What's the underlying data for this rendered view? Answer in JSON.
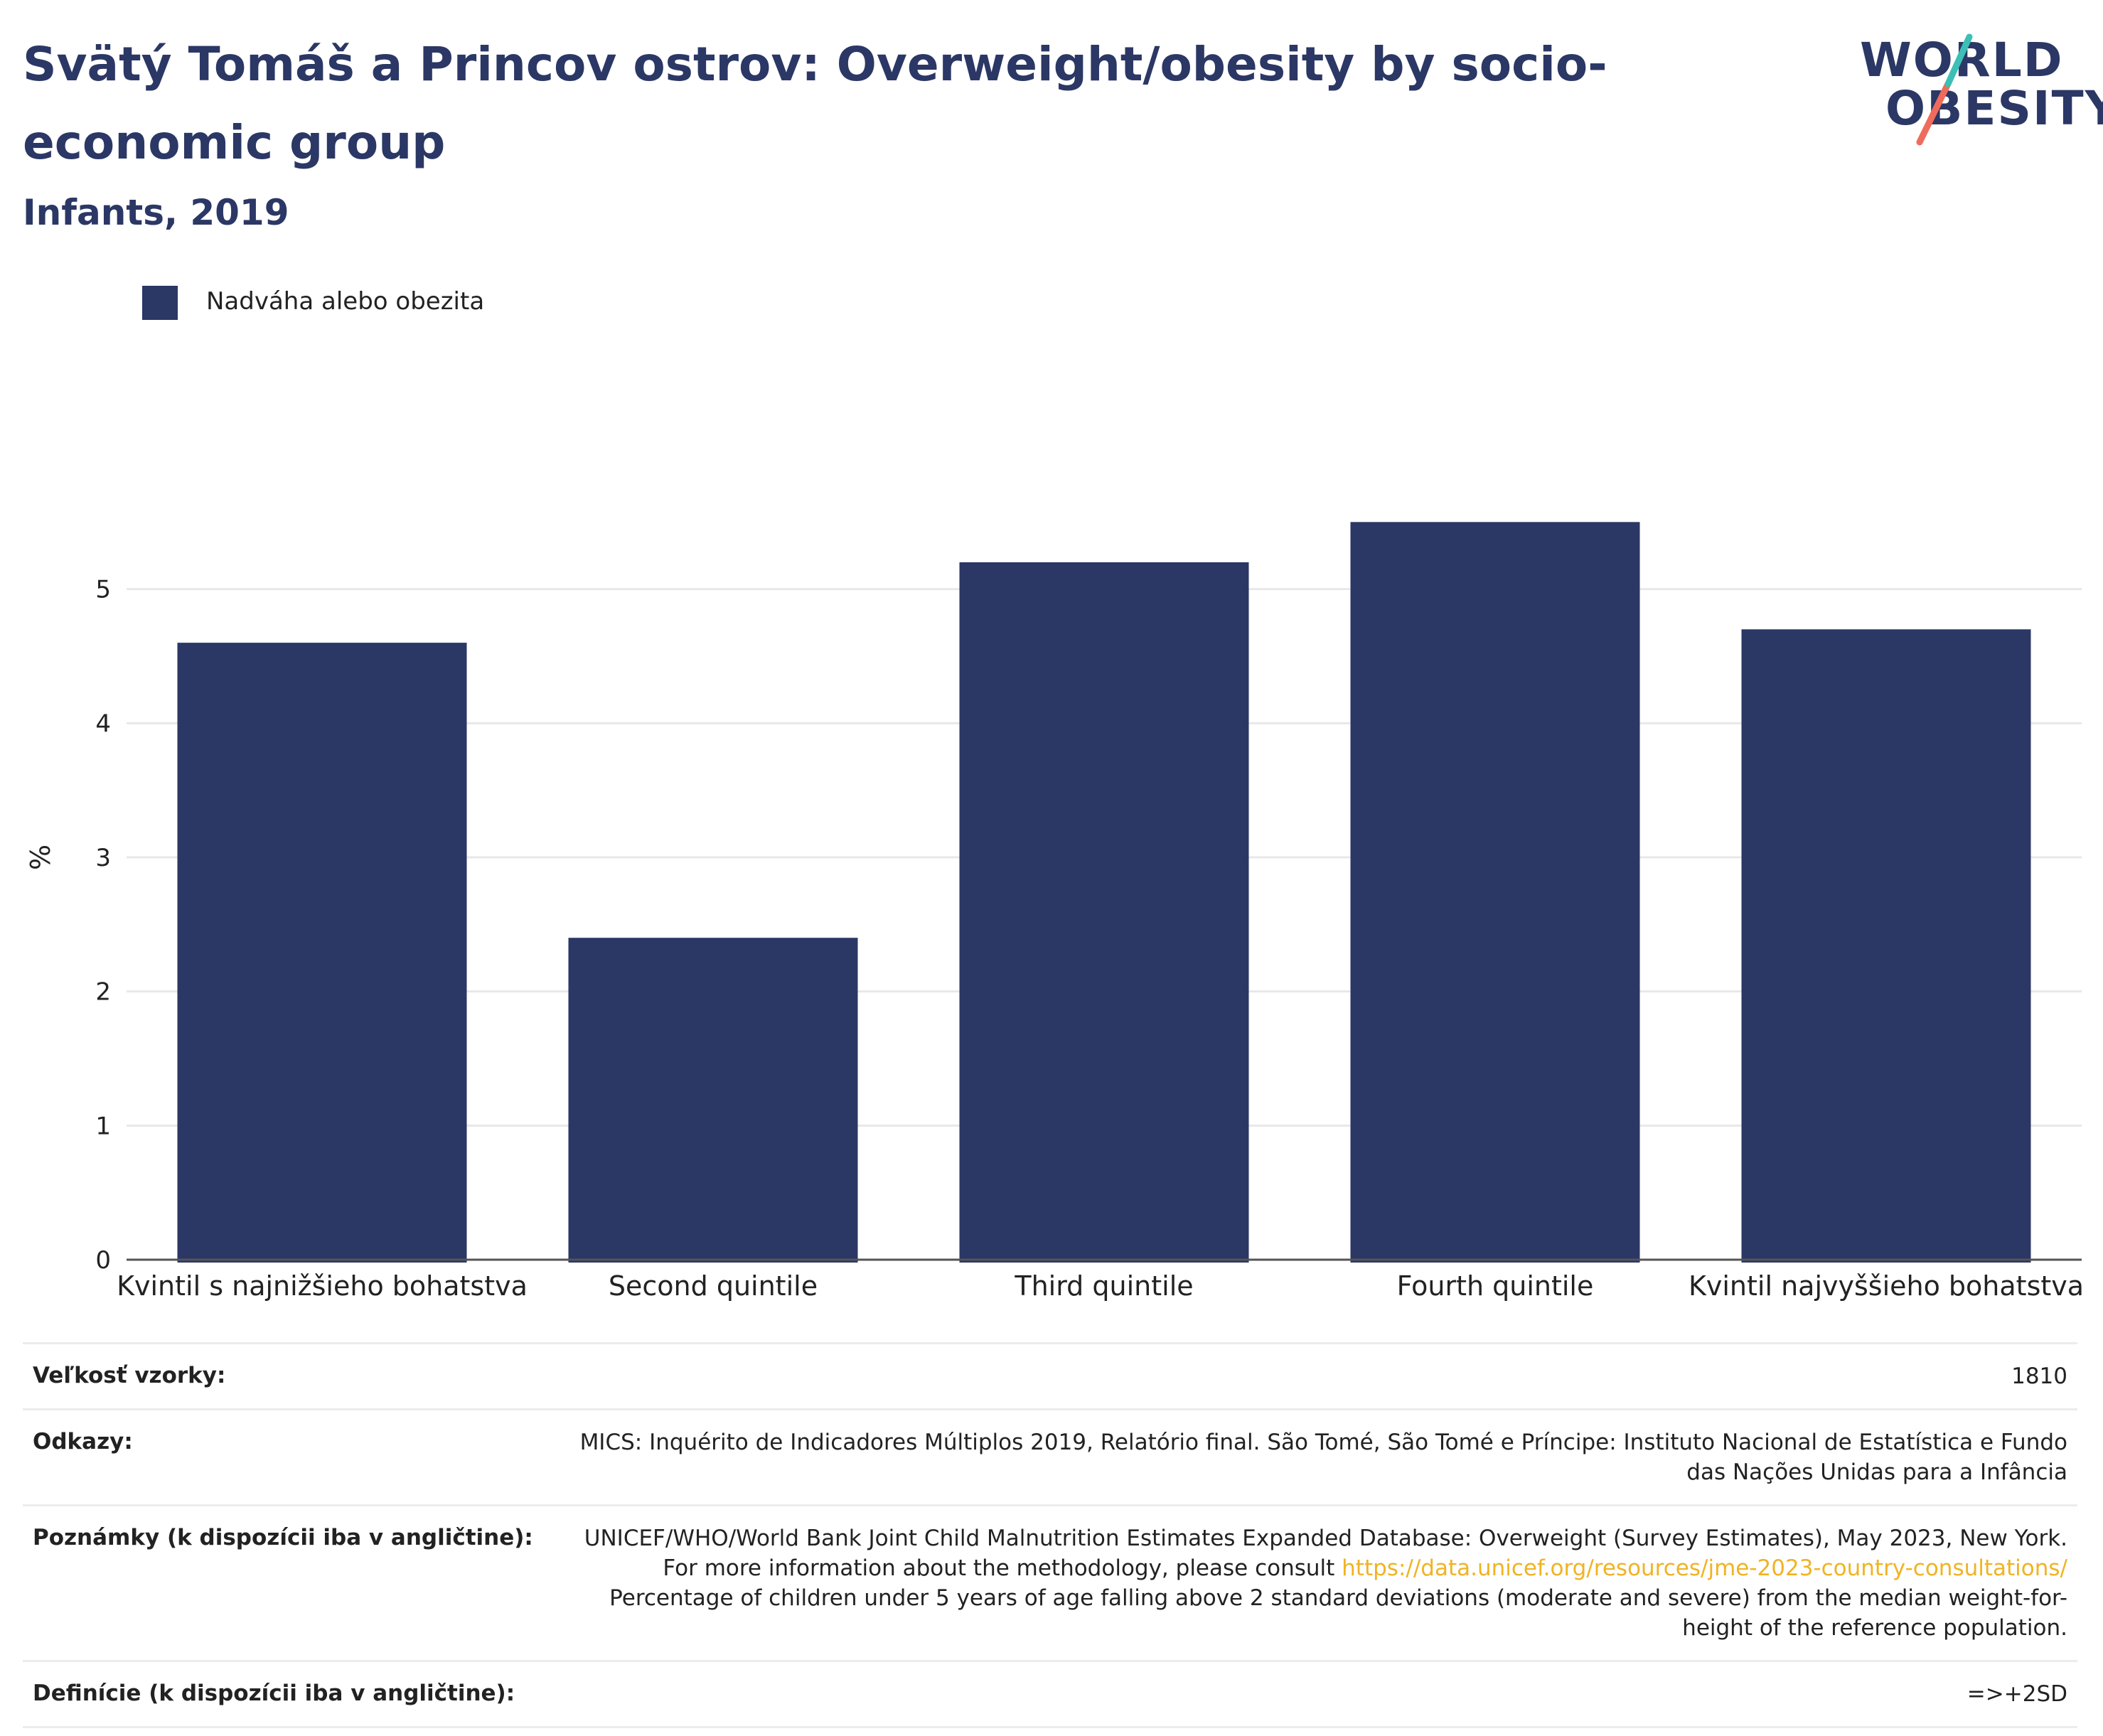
{
  "header": {
    "title": "Svätý Tomáš a Princov ostrov: Overweight/obesity by socio-economic group",
    "subtitle": "Infants, 2019"
  },
  "logo": {
    "line1": "WORLD",
    "line2": "OBESITY"
  },
  "colors": {
    "bar": "#2b3765",
    "title": "#2b3765",
    "link": "#f0b323",
    "logo_teal": "#3cbfb4",
    "logo_coral": "#ef6b5b"
  },
  "legend": {
    "label": "Nadváha alebo obezita"
  },
  "chart_data": {
    "type": "bar",
    "categories": [
      "Kvintil s najnižšieho bohatstva",
      "Second quintile",
      "Third quintile",
      "Fourth quintile",
      "Kvintil najvyššieho bohatstva"
    ],
    "series": [
      {
        "name": "Nadváha alebo obezita",
        "values": [
          4.6,
          2.4,
          5.2,
          5.5,
          4.7
        ]
      }
    ],
    "ylabel": "%",
    "ylim": [
      0,
      6
    ],
    "yticks": [
      0,
      1,
      2,
      3,
      4,
      5
    ],
    "grid": true,
    "legend_position": "top-left"
  },
  "footer": {
    "rows": [
      {
        "label": "Veľkosť vzorky:",
        "value": "1810"
      },
      {
        "label": "Odkazy:",
        "value": "MICS: Inquérito de Indicadores Múltiplos 2019, Relatório final. São Tomé, São Tomé e Príncipe: Instituto Nacional de Estatística e Fundo das Nações Unidas para a Infância"
      },
      {
        "label": "Poznámky (k dispozícii iba v angličtine):",
        "value_before": "UNICEF/WHO/World Bank Joint Child Malnutrition Estimates Expanded Database: Overweight (Survey Estimates), May 2023, New York. For more information about the methodology, please consult ",
        "link": "https://data.unicef.org/resources/jme-2023-country-consultations/",
        "value_after": " Percentage of children under 5 years of age falling above 2 standard deviations (moderate and severe) from the median weight-for-height of the reference population."
      },
      {
        "label": "Definície (k dispozícii iba v angličtine):",
        "value": "=>+2SD"
      }
    ]
  }
}
